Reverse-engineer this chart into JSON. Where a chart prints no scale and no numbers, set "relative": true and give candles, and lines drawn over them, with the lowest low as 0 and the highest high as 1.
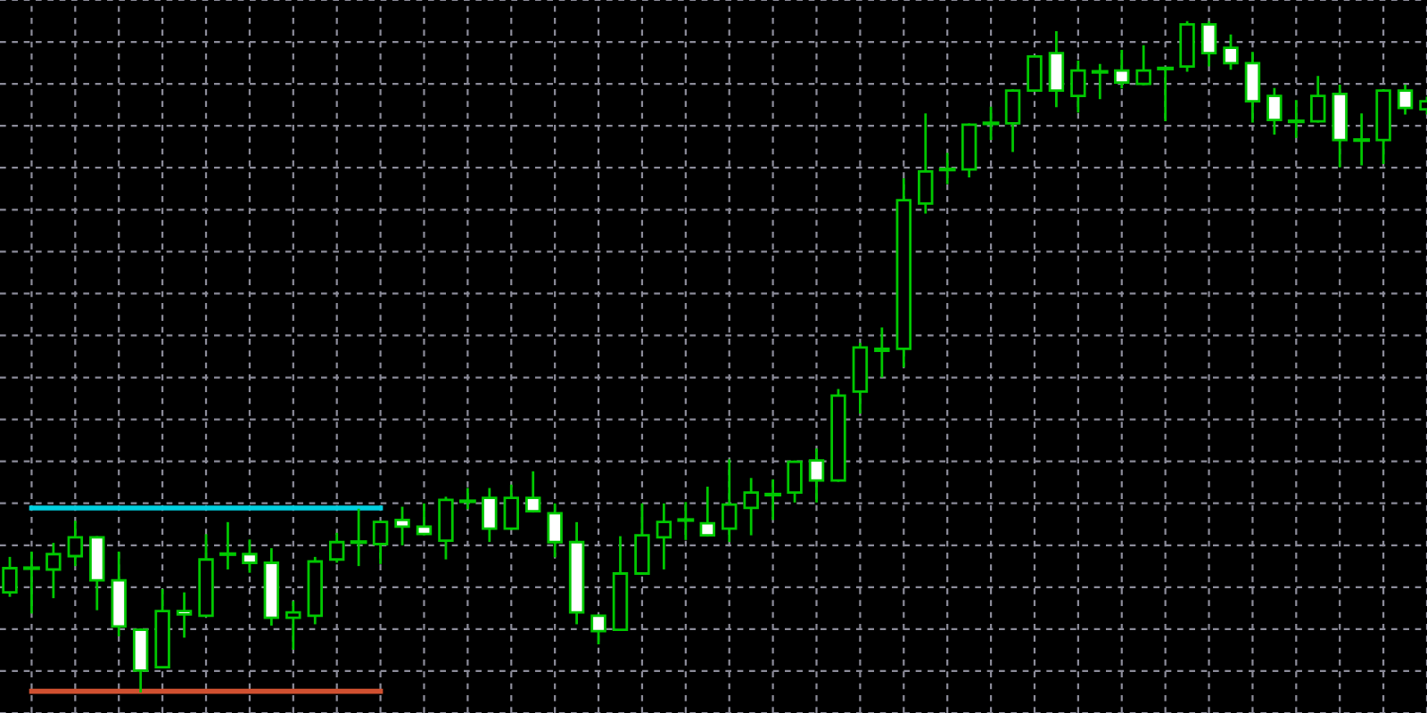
{
  "chart_data": {
    "type": "candlestick",
    "relative": true,
    "grid": true,
    "tick_labels": false,
    "categories": [
      null,
      null,
      null,
      null,
      null,
      null,
      null,
      null,
      null,
      null,
      null,
      null,
      null,
      null,
      null,
      null,
      null,
      null,
      null,
      null,
      null,
      null,
      null,
      null,
      null,
      null,
      null,
      null,
      null,
      null,
      null,
      null,
      null,
      null,
      null,
      null,
      null,
      null,
      null,
      null,
      null,
      null,
      null,
      null,
      null,
      null,
      null,
      null,
      null,
      null,
      null,
      null,
      null,
      null,
      null,
      null,
      null,
      null,
      null,
      null,
      null,
      null,
      null,
      null,
      null,
      null
    ],
    "series": [
      {
        "type": "candlestick",
        "color": "#00c800",
        "ohlc": [
          [
            0.148,
            0.199,
            0.143,
            0.184
          ],
          [
            0.184,
            0.207,
            0.118,
            0.184
          ],
          [
            0.182,
            0.22,
            0.141,
            0.205
          ],
          [
            0.202,
            0.253,
            0.189,
            0.23
          ],
          [
            0.23,
            0.23,
            0.123,
            0.166
          ],
          [
            0.166,
            0.207,
            0.084,
            0.097
          ],
          [
            0.092,
            0.092,
            0.0,
            0.031
          ],
          [
            0.036,
            0.151,
            0.036,
            0.12
          ],
          [
            0.12,
            0.146,
            0.082,
            0.115
          ],
          [
            0.113,
            0.233,
            0.113,
            0.197
          ],
          [
            0.205,
            0.251,
            0.184,
            0.205
          ],
          [
            0.205,
            0.225,
            0.179,
            0.192
          ],
          [
            0.192,
            0.212,
            0.1,
            0.11
          ],
          [
            0.11,
            0.133,
            0.064,
            0.118
          ],
          [
            0.113,
            0.199,
            0.102,
            0.194
          ],
          [
            0.197,
            0.235,
            0.194,
            0.223
          ],
          [
            0.223,
            0.271,
            0.189,
            0.223
          ],
          [
            0.22,
            0.253,
            0.192,
            0.253
          ],
          [
            0.256,
            0.274,
            0.22,
            0.246
          ],
          [
            0.246,
            0.279,
            0.235,
            0.235
          ],
          [
            0.225,
            0.289,
            0.199,
            0.286
          ],
          [
            0.284,
            0.302,
            0.274,
            0.284
          ],
          [
            0.289,
            0.302,
            0.225,
            0.243
          ],
          [
            0.243,
            0.307,
            0.243,
            0.289
          ],
          [
            0.289,
            0.327,
            0.269,
            0.269
          ],
          [
            0.266,
            0.279,
            0.202,
            0.223
          ],
          [
            0.223,
            0.251,
            0.102,
            0.118
          ],
          [
            0.113,
            0.113,
            0.072,
            0.09
          ],
          [
            0.092,
            0.23,
            0.092,
            0.176
          ],
          [
            0.176,
            0.279,
            0.176,
            0.233
          ],
          [
            0.23,
            0.279,
            0.184,
            0.253
          ],
          [
            0.256,
            0.281,
            0.228,
            0.256
          ],
          [
            0.251,
            0.304,
            0.233,
            0.233
          ],
          [
            0.243,
            0.345,
            0.225,
            0.279
          ],
          [
            0.274,
            0.317,
            0.235,
            0.297
          ],
          [
            0.294,
            0.315,
            0.258,
            0.294
          ],
          [
            0.297,
            0.343,
            0.284,
            0.343
          ],
          [
            0.345,
            0.361,
            0.284,
            0.315
          ],
          [
            0.315,
            0.45,
            0.315,
            0.442
          ],
          [
            0.448,
            0.519,
            0.417,
            0.514
          ],
          [
            0.512,
            0.542,
            0.471,
            0.509
          ],
          [
            0.512,
            0.765,
            0.486,
            0.734
          ],
          [
            0.729,
            0.862,
            0.716,
            0.777
          ],
          [
            0.78,
            0.803,
            0.76,
            0.78
          ],
          [
            0.78,
            0.847,
            0.77,
            0.847
          ],
          [
            0.849,
            0.872,
            0.826,
            0.849
          ],
          [
            0.849,
            0.898,
            0.808,
            0.898
          ],
          [
            0.898,
            0.949,
            0.898,
            0.949
          ],
          [
            0.954,
            0.985,
            0.875,
            0.898
          ],
          [
            0.89,
            0.941,
            0.867,
            0.928
          ],
          [
            0.926,
            0.936,
            0.887,
            0.926
          ],
          [
            0.928,
            0.957,
            0.903,
            0.91
          ],
          [
            0.908,
            0.964,
            0.908,
            0.928
          ],
          [
            0.931,
            0.931,
            0.854,
            0.931
          ],
          [
            0.934,
            1.0,
            0.928,
            0.997
          ],
          [
            0.997,
            1.0,
            0.936,
            0.954
          ],
          [
            0.962,
            0.98,
            0.931,
            0.939
          ],
          [
            0.939,
            0.954,
            0.852,
            0.882
          ],
          [
            0.89,
            0.9,
            0.834,
            0.854
          ],
          [
            0.852,
            0.882,
            0.829,
            0.852
          ],
          [
            0.852,
            0.918,
            0.852,
            0.89
          ],
          [
            0.893,
            0.905,
            0.785,
            0.824
          ],
          [
            0.824,
            0.862,
            0.788,
            0.824
          ],
          [
            0.824,
            0.898,
            0.79,
            0.898
          ],
          [
            0.898,
            0.905,
            0.864,
            0.872
          ],
          [
            0.87,
            0.887,
            0.864,
            0.882
          ]
        ]
      },
      {
        "type": "line",
        "color": "#00d0e0",
        "values": [
          null,
          0.274,
          0.274,
          0.274,
          0.274,
          0.274,
          0.274,
          0.274,
          0.274,
          0.274,
          0.274,
          0.274,
          0.274,
          0.274,
          0.274,
          0.274,
          0.274,
          0.274,
          null,
          null,
          null,
          null,
          null,
          null,
          null,
          null,
          null,
          null,
          null,
          null,
          null,
          null,
          null,
          null,
          null,
          null,
          null,
          null,
          null,
          null,
          null,
          null,
          null,
          null,
          null,
          null,
          null,
          null,
          null,
          null,
          null,
          null,
          null,
          null,
          null,
          null,
          null,
          null,
          null,
          null,
          null,
          null,
          null,
          null,
          null,
          null
        ]
      },
      {
        "type": "line",
        "color": "#d05030",
        "values": [
          null,
          0.0,
          0.0,
          0.0,
          0.0,
          0.0,
          0.0,
          0.0,
          0.0,
          0.0,
          0.0,
          0.0,
          0.0,
          0.0,
          0.0,
          0.0,
          0.0,
          0.0,
          null,
          null,
          null,
          null,
          null,
          null,
          null,
          null,
          null,
          null,
          null,
          null,
          null,
          null,
          null,
          null,
          null,
          null,
          null,
          null,
          null,
          null,
          null,
          null,
          null,
          null,
          null,
          null,
          null,
          null,
          null,
          null,
          null,
          null,
          null,
          null,
          null,
          null,
          null,
          null,
          null,
          null,
          null,
          null,
          null,
          null,
          null,
          null
        ]
      }
    ]
  }
}
